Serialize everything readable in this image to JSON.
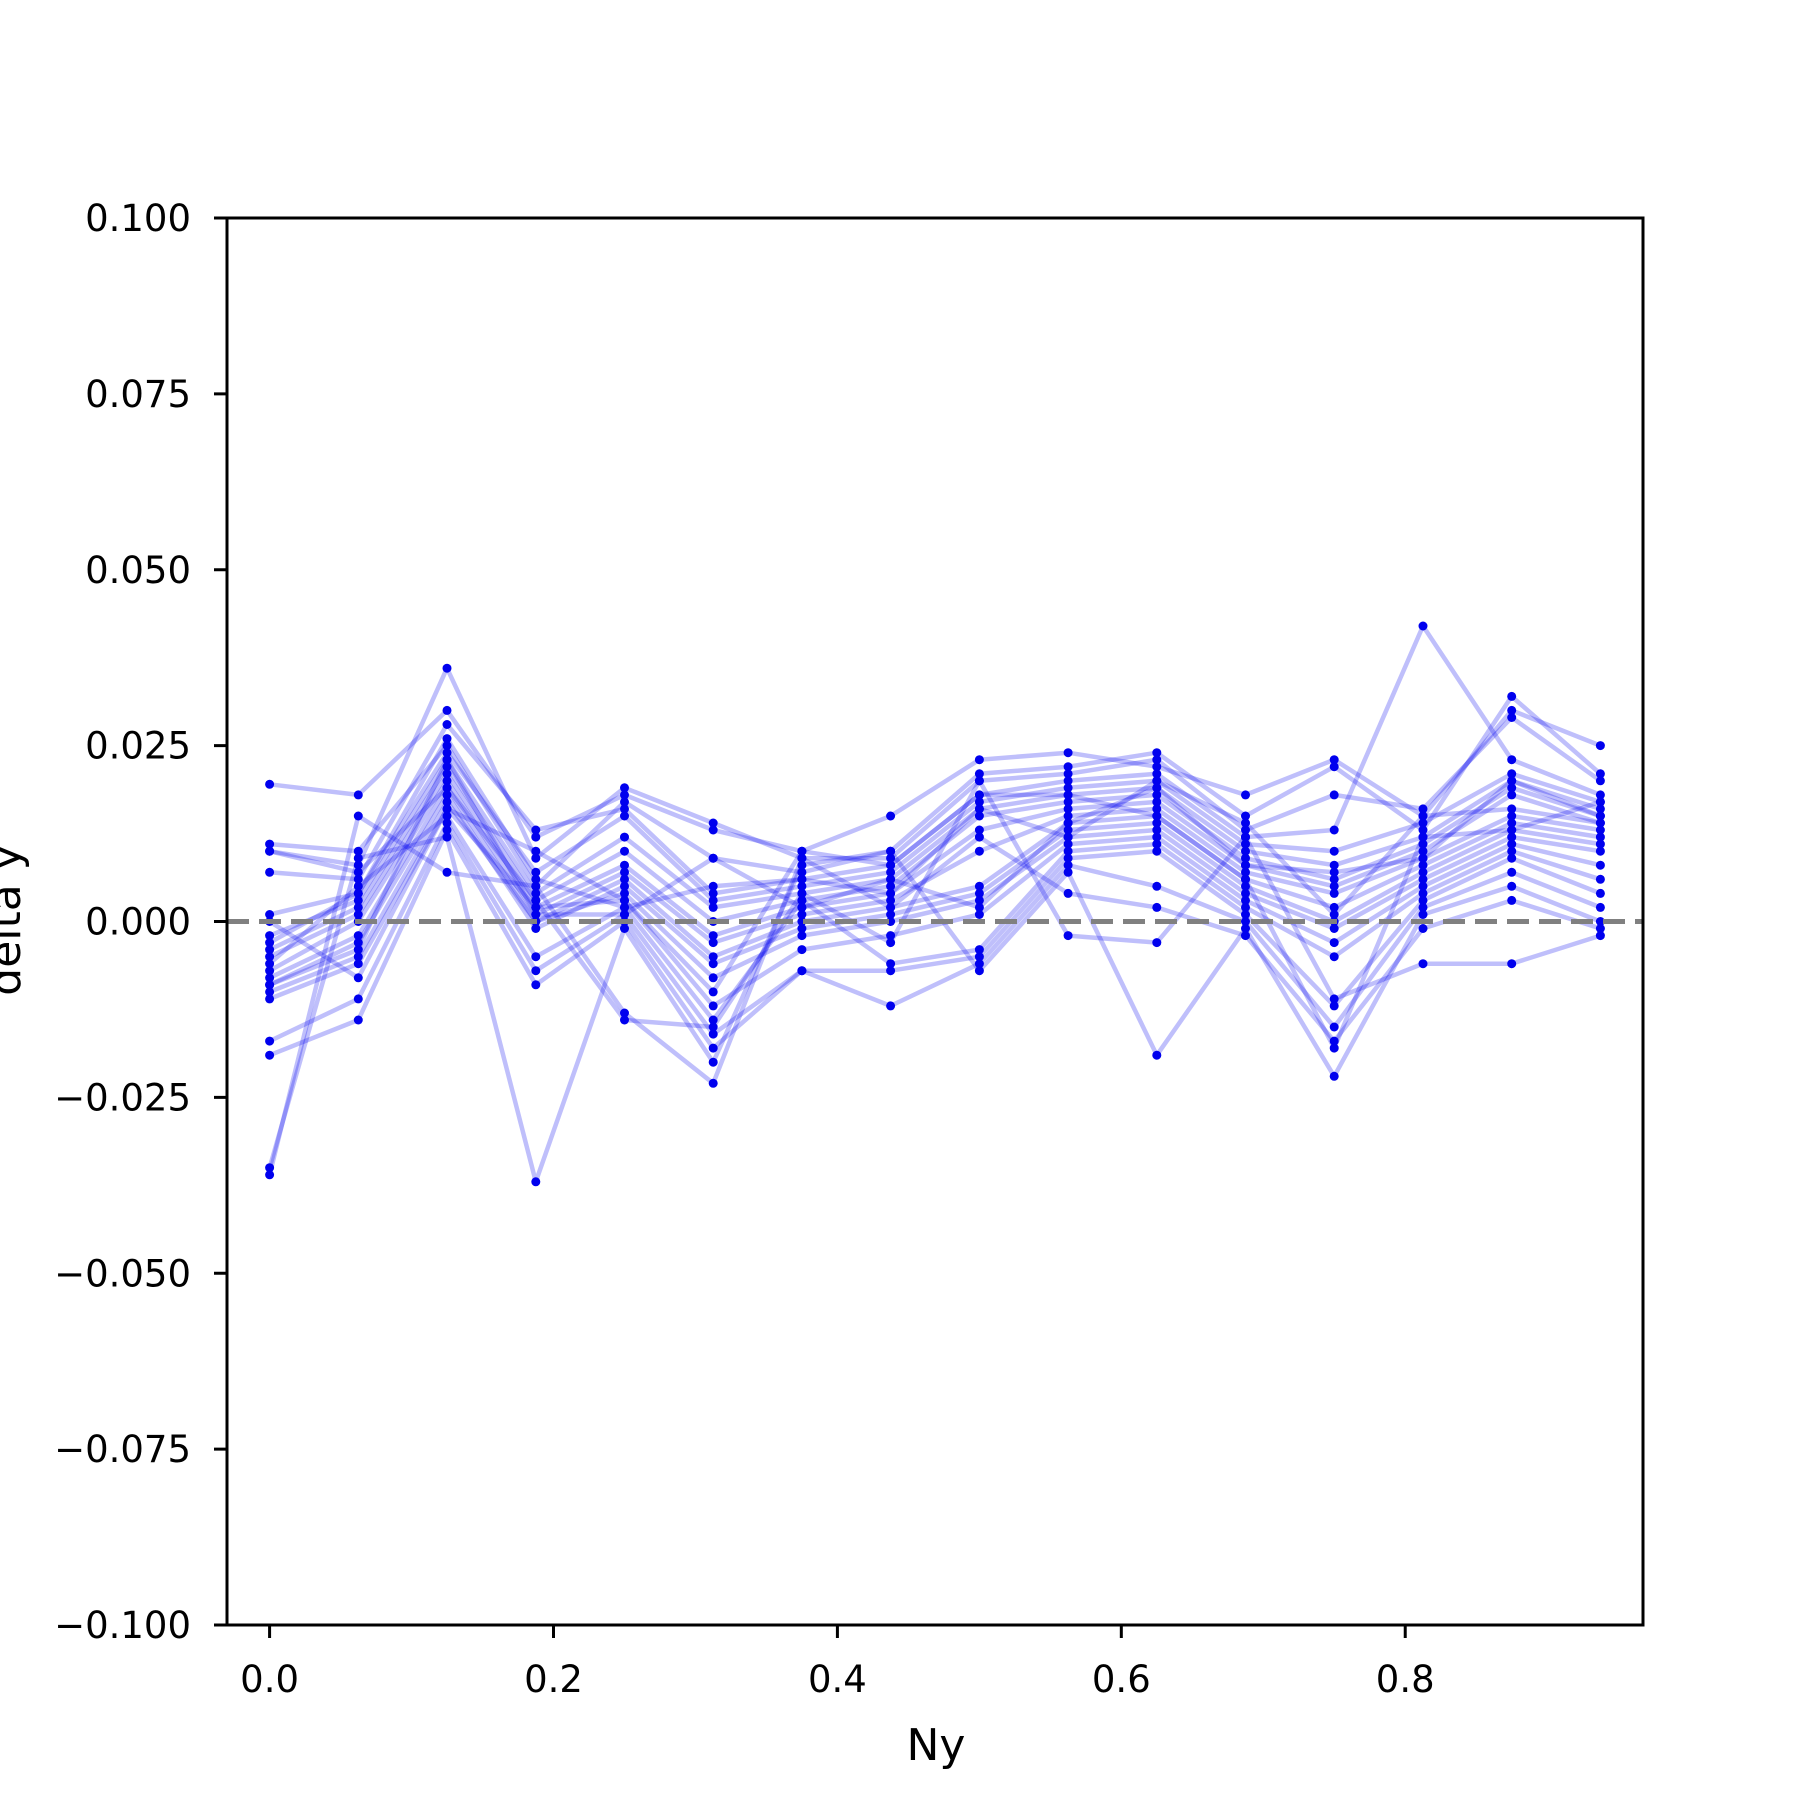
{
  "chart_data": {
    "type": "line",
    "title": "",
    "xlabel": "Ny",
    "ylabel": "delta y",
    "xlim": [
      -0.03,
      0.9675
    ],
    "ylim": [
      -0.1,
      0.1
    ],
    "grid": false,
    "reference_line": {
      "y": 0.0,
      "style": "dashed",
      "color": "#808080"
    },
    "series_color": "#0000ee",
    "x": [
      0.0,
      0.0625,
      0.125,
      0.1875,
      0.25,
      0.3125,
      0.375,
      0.4375,
      0.5,
      0.5625,
      0.625,
      0.6875,
      0.75,
      0.8125,
      0.875,
      0.9375
    ],
    "series": [
      {
        "values": [
          0.0195,
          0.018,
          0.03,
          0.012,
          0.018,
          0.013,
          0.01,
          0.015,
          0.023,
          0.024,
          0.022,
          0.018,
          0.023,
          0.015,
          0.03,
          0.025
        ]
      },
      {
        "values": [
          0.011,
          0.01,
          0.025,
          0.005,
          0.017,
          0.009,
          0.007,
          0.01,
          0.021,
          0.022,
          0.024,
          0.015,
          0.022,
          0.013,
          0.032,
          0.021
        ]
      },
      {
        "values": [
          0.01,
          0.008,
          0.036,
          0.009,
          0.019,
          0.014,
          0.009,
          0.009,
          0.02,
          0.021,
          0.023,
          0.013,
          0.018,
          0.016,
          0.029,
          0.02
        ]
      },
      {
        "values": [
          0.007,
          0.006,
          0.028,
          0.013,
          0.016,
          0.004,
          0.006,
          0.008,
          0.018,
          0.02,
          0.021,
          0.012,
          0.013,
          0.042,
          0.023,
          0.018
        ]
      },
      {
        "values": [
          0.001,
          0.004,
          0.024,
          0.007,
          0.015,
          0.003,
          0.005,
          0.007,
          0.017,
          0.019,
          0.02,
          0.011,
          0.01,
          0.014,
          0.021,
          0.017
        ]
      },
      {
        "values": [
          -0.002,
          0.003,
          0.023,
          0.004,
          0.012,
          0.002,
          0.004,
          0.006,
          0.016,
          0.018,
          0.019,
          0.01,
          0.008,
          0.012,
          0.02,
          0.016
        ]
      },
      {
        "values": [
          -0.004,
          0.002,
          0.022,
          0.003,
          0.01,
          0.0,
          0.003,
          0.005,
          0.015,
          0.017,
          0.018,
          0.009,
          0.006,
          0.011,
          0.019,
          0.015
        ]
      },
      {
        "values": [
          -0.005,
          0.001,
          0.021,
          0.002,
          0.008,
          -0.002,
          0.002,
          0.004,
          0.013,
          0.016,
          0.017,
          0.008,
          0.005,
          0.01,
          0.018,
          0.014
        ]
      },
      {
        "values": [
          -0.007,
          0.0,
          0.02,
          0.001,
          0.007,
          -0.003,
          0.001,
          0.003,
          0.01,
          0.015,
          0.016,
          0.007,
          0.004,
          0.009,
          0.015,
          0.013
        ]
      },
      {
        "values": [
          -0.008,
          -0.002,
          0.019,
          0.0,
          0.006,
          -0.005,
          0.0,
          0.002,
          0.005,
          0.014,
          0.015,
          0.006,
          0.002,
          0.008,
          0.014,
          0.012
        ]
      },
      {
        "values": [
          -0.009,
          -0.003,
          0.018,
          -0.001,
          0.005,
          -0.006,
          -0.001,
          0.001,
          0.004,
          0.013,
          0.014,
          0.005,
          0.0,
          0.007,
          0.013,
          0.011
        ]
      },
      {
        "values": [
          -0.01,
          -0.005,
          0.017,
          0.0,
          0.004,
          -0.008,
          -0.002,
          0.0,
          0.003,
          0.012,
          0.013,
          0.004,
          -0.001,
          0.006,
          0.012,
          0.01
        ]
      },
      {
        "values": [
          -0.011,
          -0.006,
          0.016,
          0.002,
          0.003,
          -0.012,
          -0.004,
          -0.002,
          0.001,
          0.011,
          0.012,
          0.003,
          -0.003,
          0.005,
          0.011,
          0.008
        ]
      },
      {
        "values": [
          -0.006,
          0.005,
          0.015,
          -0.005,
          0.002,
          -0.014,
          0.003,
          -0.006,
          -0.004,
          0.01,
          0.011,
          0.002,
          -0.005,
          0.004,
          0.01,
          0.006
        ]
      },
      {
        "values": [
          -0.017,
          -0.011,
          0.014,
          -0.007,
          0.001,
          -0.016,
          -0.007,
          -0.007,
          -0.005,
          0.009,
          0.01,
          0.001,
          -0.012,
          0.003,
          0.009,
          0.004
        ]
      },
      {
        "values": [
          -0.019,
          -0.014,
          0.013,
          -0.009,
          0.0,
          -0.018,
          -0.007,
          -0.012,
          -0.006,
          0.008,
          0.005,
          0.0,
          -0.015,
          0.002,
          0.007,
          0.002
        ]
      },
      {
        "values": [
          -0.035,
          0.009,
          0.012,
          -0.037,
          -0.001,
          -0.02,
          0.008,
          0.01,
          -0.007,
          0.007,
          -0.019,
          -0.001,
          -0.022,
          0.001,
          0.005,
          0.0
        ]
      },
      {
        "values": [
          -0.036,
          0.015,
          0.007,
          0.005,
          -0.013,
          -0.023,
          0.009,
          0.002,
          0.012,
          0.004,
          0.002,
          -0.002,
          -0.017,
          -0.001,
          0.003,
          -0.001
        ]
      },
      {
        "values": [
          0.01,
          0.007,
          0.019,
          0.003,
          -0.014,
          -0.015,
          0.004,
          -0.003,
          0.02,
          -0.002,
          -0.003,
          0.012,
          -0.011,
          -0.006,
          -0.006,
          -0.002
        ]
      },
      {
        "values": [
          -0.003,
          0.004,
          0.026,
          0.006,
          0.002,
          0.005,
          0.006,
          0.004,
          0.016,
          0.012,
          0.02,
          0.014,
          0.001,
          0.015,
          0.016,
          0.014
        ]
      },
      {
        "values": [
          0.0,
          -0.008,
          0.016,
          0.01,
          0.003,
          -0.01,
          0.01,
          0.008,
          0.018,
          0.018,
          0.015,
          0.006,
          -0.018,
          0.012,
          0.013,
          0.017
        ]
      },
      {
        "values": [
          -0.009,
          -0.004,
          0.023,
          0.001,
          0.001,
          0.009,
          0.002,
          0.006,
          0.002,
          0.014,
          0.019,
          0.008,
          0.007,
          0.009,
          0.02,
          0.015
        ]
      }
    ],
    "yticks": [
      "0.100",
      "0.075",
      "0.050",
      "0.025",
      "0.000",
      "−0.025",
      "−0.050",
      "−0.075",
      "−0.100"
    ],
    "xticks": [
      "0.0",
      "0.2",
      "0.4",
      "0.6",
      "0.8"
    ]
  }
}
